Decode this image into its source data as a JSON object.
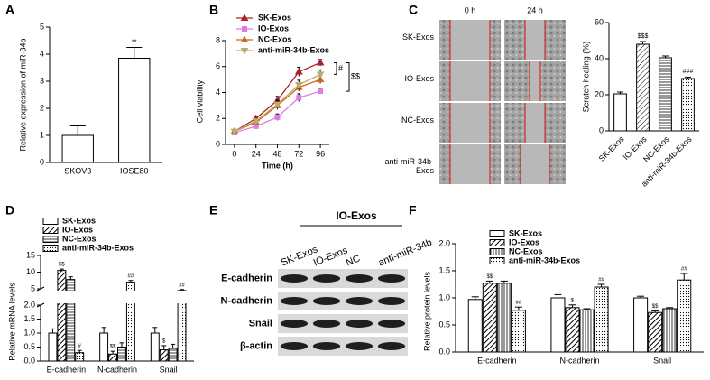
{
  "chart_data": [
    {
      "panel": "A",
      "type": "bar",
      "ylabel": "Relative expression of miR-34b",
      "categories": [
        "SKOV3",
        "IOSE80"
      ],
      "values": [
        1.0,
        3.85
      ],
      "errors": [
        0.35,
        0.4
      ],
      "color": "#ffffff",
      "ylim": [
        0,
        5
      ],
      "yticks": [
        0,
        1,
        2,
        3,
        4,
        5
      ],
      "annotations": [
        {
          "category": "IOSE80",
          "text": "**"
        }
      ]
    },
    {
      "panel": "B",
      "type": "line",
      "xlabel": "Time (h)",
      "ylabel": "Cell viability",
      "x": [
        0,
        24,
        48,
        72,
        96
      ],
      "xlim": [
        -10,
        106
      ],
      "xticks": [
        0,
        24,
        48,
        72,
        96
      ],
      "ylim": [
        0,
        8
      ],
      "yticks": [
        0,
        2,
        4,
        6,
        8
      ],
      "legend": "top-left",
      "series": [
        {
          "name": "SK-Exos",
          "color": "#b0202a",
          "marker": "triangle",
          "values": [
            1.0,
            2.0,
            3.4,
            5.6,
            6.3
          ],
          "errors": [
            0.1,
            0.15,
            0.3,
            0.35,
            0.25
          ]
        },
        {
          "name": "IO-Exos",
          "color": "#e07ae6",
          "marker": "square",
          "values": [
            0.9,
            1.4,
            2.1,
            3.6,
            4.1
          ],
          "errors": [
            0.1,
            0.15,
            0.25,
            0.3,
            0.2
          ]
        },
        {
          "name": "NC-Exos",
          "color": "#cc6a20",
          "marker": "triangle",
          "values": [
            1.0,
            1.7,
            3.0,
            4.4,
            5.0
          ],
          "errors": [
            0.1,
            0.15,
            0.3,
            0.3,
            0.3
          ]
        },
        {
          "name": "anti-miR-34b-Exos",
          "color": "#b8ad6a",
          "marker": "triangle-down",
          "values": [
            1.0,
            1.8,
            3.1,
            4.6,
            5.4
          ],
          "errors": [
            0.1,
            0.15,
            0.3,
            0.35,
            0.35
          ]
        }
      ],
      "annotations": [
        {
          "text": "#",
          "from": "SK-Exos",
          "to": "anti-miR-34b-Exos"
        },
        {
          "text": "$$",
          "from": "SK-Exos",
          "to": "IO-Exos"
        }
      ]
    },
    {
      "panel": "C",
      "type": "bar",
      "image_columns": [
        "0 h",
        "24 h"
      ],
      "image_rows": [
        "SK-Exos",
        "IO-Exos",
        "NC-Exos",
        "anti-miR-34b-\nExos"
      ],
      "ylabel": "Scratch healing (%)",
      "categories": [
        "SK-Exos",
        "IO-Exos",
        "NC-Exos",
        "anti-miR-34b-Exos"
      ],
      "values": [
        20.5,
        48,
        40.5,
        29
      ],
      "errors": [
        1,
        1.5,
        1,
        0.8
      ],
      "patterns": [
        "none",
        "diagonal",
        "horizontal",
        "dots"
      ],
      "ylim": [
        0,
        60
      ],
      "yticks": [
        0,
        20,
        40,
        60
      ],
      "annotations": [
        {
          "category": "IO-Exos",
          "text": "$$$"
        },
        {
          "category": "anti-miR-34b-Exos",
          "text": "###"
        }
      ]
    },
    {
      "panel": "D",
      "type": "grouped_bar",
      "ylabel": "Relative mRNA levels",
      "categories": [
        "E-cadherin",
        "N-cadherin",
        "Snail"
      ],
      "ysegments": [
        {
          "ylim": [
            0,
            2
          ],
          "yticks": [
            {
              "value": 0,
              "label": "0.0"
            },
            {
              "value": 0.5,
              "label": "0.5"
            },
            {
              "value": 1,
              "label": "1.0"
            },
            {
              "value": 1.5,
              "label": "1.5"
            },
            {
              "value": 2,
              "label": "2.0"
            }
          ]
        },
        {
          "ylim": [
            5,
            15
          ],
          "yticks": [
            5,
            10,
            15
          ]
        }
      ],
      "legend": "top-left",
      "series": [
        {
          "name": "SK-Exos",
          "pattern": "none",
          "values": [
            1.0,
            1.0,
            1.0
          ],
          "errors": [
            0.15,
            0.2,
            0.2
          ]
        },
        {
          "name": "IO-Exos",
          "pattern": "diagonal-thick",
          "values": [
            10.5,
            0.25,
            0.4
          ],
          "errors": [
            0.4,
            0.1,
            0.15
          ]
        },
        {
          "name": "NC-Exos",
          "pattern": "horizontal",
          "values": [
            7.8,
            0.5,
            0.45
          ],
          "errors": [
            0.8,
            0.15,
            0.15
          ]
        },
        {
          "name": "anti-miR-34b-Exos",
          "pattern": "dots",
          "values": [
            0.3,
            7.0,
            4.5
          ],
          "errors": [
            0.08,
            0.5,
            0.3
          ]
        }
      ],
      "annotations": [
        {
          "series": "IO-Exos",
          "category": "E-cadherin",
          "text": "$$"
        },
        {
          "series": "anti-miR-34b-Exos",
          "category": "E-cadherin",
          "text": "#"
        },
        {
          "series": "IO-Exos",
          "category": "N-cadherin",
          "text": "$$"
        },
        {
          "series": "anti-miR-34b-Exos",
          "category": "N-cadherin",
          "text": "##"
        },
        {
          "series": "IO-Exos",
          "category": "Snail",
          "text": "$"
        },
        {
          "series": "anti-miR-34b-Exos",
          "category": "Snail",
          "text": "##"
        }
      ]
    },
    {
      "panel": "E",
      "type": "blot",
      "group_label": "IO-Exos",
      "lanes": [
        "SK-Exos",
        "IO-Exos",
        "NC",
        "anti-miR-34b"
      ],
      "rows": [
        "E-cadherin",
        "N-cadherin",
        "Snail",
        "β-actin"
      ]
    },
    {
      "panel": "F",
      "type": "grouped_bar",
      "ylabel": "Relative protein levels",
      "categories": [
        "E-cadherin",
        "N-cadherin",
        "Snail"
      ],
      "ylim": [
        0,
        2
      ],
      "yticks": [
        {
          "value": 0,
          "label": "0.0"
        },
        {
          "value": 0.5,
          "label": "0.5"
        },
        {
          "value": 1,
          "label": "1.0"
        },
        {
          "value": 1.5,
          "label": "1.5"
        },
        {
          "value": 2,
          "label": "2.0"
        }
      ],
      "legend": "top-left",
      "series": [
        {
          "name": "SK-Exos",
          "pattern": "none",
          "values": [
            0.97,
            1.0,
            1.0
          ],
          "errors": [
            0.05,
            0.06,
            0.03
          ]
        },
        {
          "name": "IO-Exos",
          "pattern": "diagonal-thick",
          "values": [
            1.27,
            0.82,
            0.73
          ],
          "errors": [
            0.04,
            0.05,
            0.03
          ]
        },
        {
          "name": "NC-Exos",
          "pattern": "vertical",
          "values": [
            1.27,
            0.78,
            0.8
          ],
          "errors": [
            0.04,
            0.02,
            0.02
          ]
        },
        {
          "name": "anti-miR-34b-Exos",
          "pattern": "dots",
          "values": [
            0.77,
            1.2,
            1.33
          ],
          "errors": [
            0.06,
            0.05,
            0.12
          ]
        }
      ],
      "annotations": [
        {
          "series": "IO-Exos",
          "category": "E-cadherin",
          "text": "$$"
        },
        {
          "series": "anti-miR-34b-Exos",
          "category": "E-cadherin",
          "text": "##"
        },
        {
          "series": "IO-Exos",
          "category": "N-cadherin",
          "text": "$"
        },
        {
          "series": "anti-miR-34b-Exos",
          "category": "N-cadherin",
          "text": "##"
        },
        {
          "series": "IO-Exos",
          "category": "Snail",
          "text": "$$"
        },
        {
          "series": "anti-miR-34b-Exos",
          "category": "Snail",
          "text": "##"
        }
      ]
    }
  ]
}
